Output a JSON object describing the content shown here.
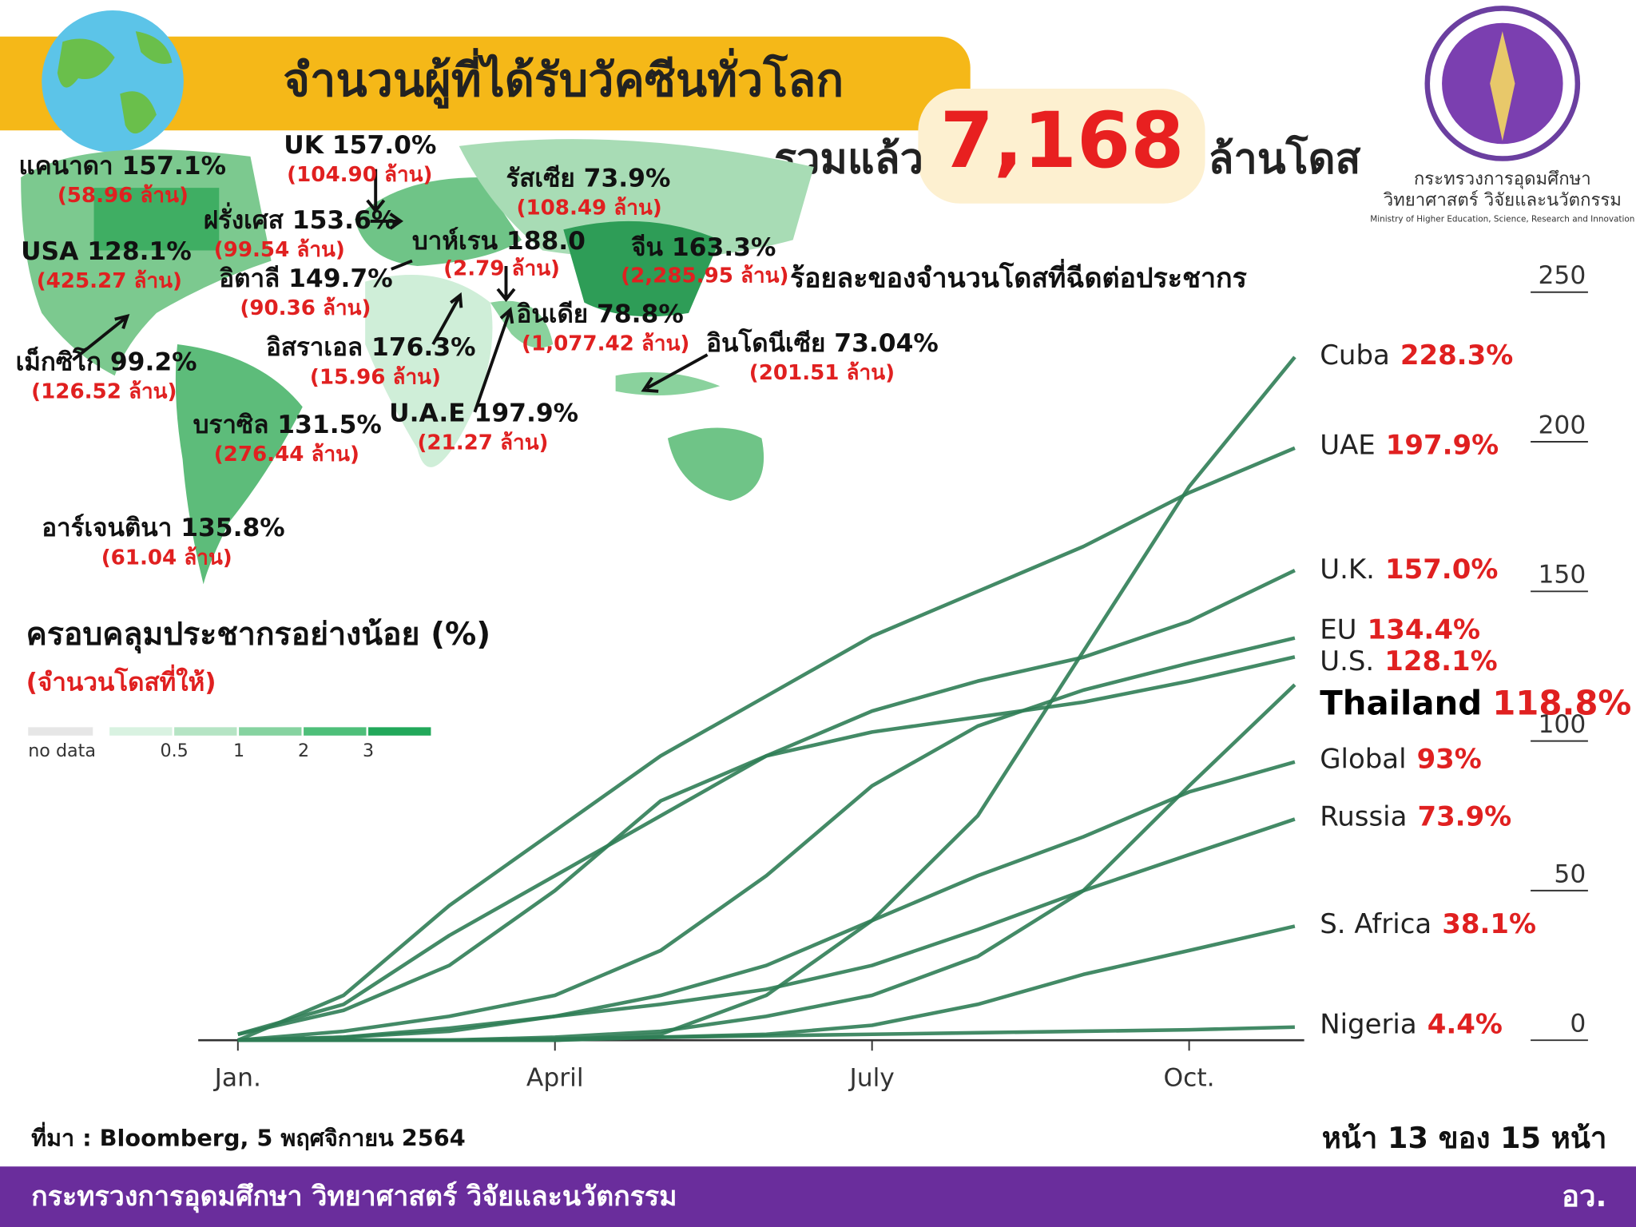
{
  "header": {
    "title": "จำนวนผู้ที่ได้รับวัคซีนทั่วโลก",
    "total_prefix": "รวมแล้ว",
    "total": "7,168",
    "total_unit": "ล้านโดส",
    "ministry_th_1": "กระทรวงการอุดมศึกษา",
    "ministry_th_2": "วิทยาศาสตร์ วิจัยและนวัตกรรม",
    "ministry_en": "Ministry of Higher Education, Science, Research and Innovation"
  },
  "map": {
    "legend_title": "ครอบคลุมประชากรอย่างน้อย (%)",
    "legend_subtitle": "(จำนวนโดสที่ให้)",
    "legend": [
      "no data",
      "0.5",
      "1",
      "2",
      "3"
    ],
    "labels": [
      {
        "text": "แคนาดา 157.1%",
        "sub": "(58.96 ล้าน)"
      },
      {
        "text": "UK 157.0%",
        "sub": "(104.90 ล้าน)"
      },
      {
        "text": "รัสเซีย 73.9%",
        "sub": "(108.49 ล้าน)"
      },
      {
        "text": "ฝรั่งเศส 153.6%",
        "sub": "(99.54 ล้าน)"
      },
      {
        "text": "USA 128.1%",
        "sub": "(425.27 ล้าน)"
      },
      {
        "text": "บาห์เรน 188.0",
        "sub": "(2.79 ล้าน)"
      },
      {
        "text": "จีน 163.3%",
        "sub": "(2,285.95 ล้าน)"
      },
      {
        "text": "อิตาลี 149.7%",
        "sub": "(90.36 ล้าน)"
      },
      {
        "text": "อินเดีย 78.8%",
        "sub": "(1,077.42 ล้าน)"
      },
      {
        "text": "อิสราเอล 176.3%",
        "sub": "(15.96 ล้าน)"
      },
      {
        "text": "อินโดนีเซีย 73.04%",
        "sub": "(201.51 ล้าน)"
      },
      {
        "text": "เม็กซิโก 99.2%",
        "sub": "(126.52 ล้าน)"
      },
      {
        "text": "U.A.E 197.9%",
        "sub": "(21.27 ล้าน)"
      },
      {
        "text": "บราซิล 131.5%",
        "sub": "(276.44 ล้าน)"
      },
      {
        "text": "อาร์เจนตินา 135.8%",
        "sub": "(61.04 ล้าน)"
      }
    ]
  },
  "chart_data": {
    "type": "line",
    "title": "ร้อยละของจำนวนโดสที่ฉีดต่อประชากร",
    "categories": [
      "Jan.",
      null,
      null,
      "April",
      null,
      null,
      "July",
      null,
      null,
      "Oct.",
      null
    ],
    "ylim": [
      0,
      250
    ],
    "yticks": [
      0,
      50,
      100,
      150,
      200,
      250
    ],
    "series": [
      {
        "name": "Cuba",
        "color": "#2f7d55",
        "values": [
          0,
          0,
          0,
          0,
          2,
          15,
          40,
          75,
          130,
          185,
          228.3
        ],
        "value_labels": [
          null,
          null,
          null,
          null,
          null,
          null,
          null,
          null,
          null,
          null,
          "228.3%"
        ]
      },
      {
        "name": "UAE",
        "color": "#2f7d55",
        "values": [
          0,
          15,
          45,
          70,
          95,
          115,
          135,
          150,
          165,
          183,
          197.9
        ],
        "value_labels": [
          null,
          null,
          null,
          null,
          null,
          null,
          null,
          null,
          null,
          null,
          "197.9%"
        ]
      },
      {
        "name": "U.K.",
        "color": "#2f7d55",
        "values": [
          2,
          12,
          35,
          55,
          75,
          95,
          110,
          120,
          128,
          140,
          157.0
        ],
        "value_labels": [
          null,
          null,
          null,
          null,
          null,
          null,
          null,
          null,
          null,
          null,
          "157.0%"
        ]
      },
      {
        "name": "EU",
        "color": "#2f7d55",
        "values": [
          0,
          3,
          8,
          15,
          30,
          55,
          85,
          105,
          117,
          126,
          134.4
        ],
        "value_labels": [
          null,
          null,
          null,
          null,
          null,
          null,
          null,
          null,
          null,
          null,
          "134.4%"
        ]
      },
      {
        "name": "U.S.",
        "color": "#2f7d55",
        "values": [
          2,
          10,
          25,
          50,
          80,
          95,
          103,
          108,
          113,
          120,
          128.1
        ],
        "value_labels": [
          null,
          null,
          null,
          null,
          null,
          null,
          null,
          null,
          null,
          null,
          "128.1%"
        ]
      },
      {
        "name": "Thailand",
        "color": "#2f7d55",
        "values": [
          0,
          0,
          0,
          1,
          3,
          8,
          15,
          28,
          50,
          85,
          118.8
        ],
        "value_labels": [
          null,
          null,
          null,
          null,
          null,
          null,
          null,
          null,
          null,
          null,
          "118.8%"
        ]
      },
      {
        "name": "Global",
        "color": "#2f7d55",
        "values": [
          0,
          1,
          3,
          8,
          15,
          25,
          40,
          55,
          68,
          83,
          93
        ],
        "value_labels": [
          null,
          null,
          null,
          null,
          null,
          null,
          null,
          null,
          null,
          null,
          "93%"
        ]
      },
      {
        "name": "Russia",
        "color": "#2f7d55",
        "values": [
          0,
          1,
          4,
          8,
          12,
          17,
          25,
          37,
          50,
          62,
          73.9
        ],
        "value_labels": [
          null,
          null,
          null,
          null,
          null,
          null,
          null,
          null,
          null,
          null,
          "73.9%"
        ]
      },
      {
        "name": "S. Africa",
        "color": "#2f7d55",
        "values": [
          0,
          0,
          0,
          0,
          1,
          2,
          5,
          12,
          22,
          30,
          38.1
        ],
        "value_labels": [
          null,
          null,
          null,
          null,
          null,
          null,
          null,
          null,
          null,
          null,
          "38.1%"
        ]
      },
      {
        "name": "Nigeria",
        "color": "#2f7d55",
        "values": [
          0,
          0,
          0,
          0.5,
          1,
          1.5,
          2,
          2.5,
          3,
          3.5,
          4.4
        ],
        "value_labels": [
          null,
          null,
          null,
          null,
          null,
          null,
          null,
          null,
          null,
          null,
          "4.4%"
        ]
      }
    ]
  },
  "footer": {
    "source": "ที่มา : Bloomberg, 5 พฤศจิกายน 2564",
    "page": "หน้า 13 ของ 15 หน้า",
    "ministry": "กระทรวงการอุดมศึกษา วิทยาศาสตร์ วิจัยและนวัตกรรม",
    "short": "อว."
  }
}
